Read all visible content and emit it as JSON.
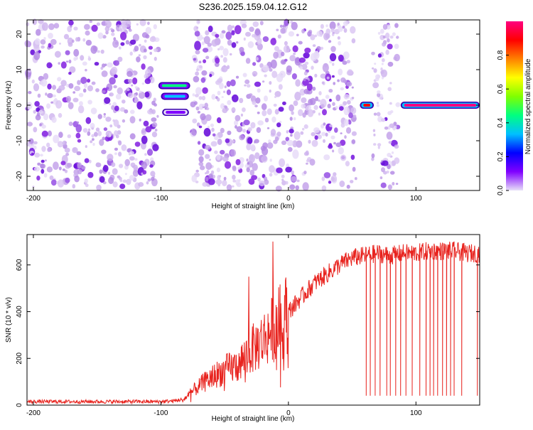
{
  "title": "S236.2025.159.04.12.G12",
  "colors": {
    "scatter_purple": "#8a2be2",
    "scatter_light": "#d6b8f0",
    "line_red": "#e8231e",
    "axis": "#000000"
  },
  "chart_data": [
    {
      "type": "heatmap",
      "xlabel": "Height of straight line (km)",
      "ylabel": "Frequency (Hz)",
      "xlim": [
        -205,
        150
      ],
      "ylim": [
        -24,
        24
      ],
      "xticks": [
        -200,
        -100,
        0,
        100
      ],
      "yticks": [
        -20,
        -10,
        0,
        10,
        20
      ],
      "grid": false,
      "colorbar": {
        "label": "Normalized spectral amplitude",
        "range": [
          0,
          1
        ],
        "ticks": [
          "0.0",
          "0.2",
          "0.4",
          "0.6",
          "0.8"
        ],
        "colormap": [
          "#e8e0f8",
          "#8000ff",
          "#0000ff",
          "#00c0ff",
          "#00ff80",
          "#80ff00",
          "#ffff00",
          "#ff8000",
          "#ff0000",
          "#ff0080"
        ]
      },
      "noise_bands": [
        {
          "x": [
            -205,
            -102
          ],
          "y": [
            -24,
            24
          ]
        },
        {
          "x": [
            -75,
            53
          ],
          "y": [
            -24,
            24
          ]
        },
        {
          "x": [
            66,
            86
          ],
          "y": [
            -24,
            24
          ]
        }
      ],
      "features": [
        {
          "x": [
            -102,
            -77
          ],
          "y": 5.5,
          "peak": 0.4
        },
        {
          "x": [
            -100,
            -78
          ],
          "y": 2.5,
          "peak": 0.3
        },
        {
          "x": [
            -99,
            -78
          ],
          "y": -2.0,
          "peak": 0.1
        },
        {
          "x": [
            56,
            67
          ],
          "y": 0.0,
          "peak": 0.9
        },
        {
          "x": [
            88,
            150
          ],
          "y": 0.0,
          "peak": 0.95
        }
      ]
    },
    {
      "type": "line",
      "xlabel": "Height of straight line (km)",
      "ylabel": "SNR (10 * v/v)",
      "xlim": [
        -205,
        150
      ],
      "ylim": [
        0,
        730
      ],
      "xticks": [
        -200,
        -100,
        0,
        100
      ],
      "yticks": [
        0,
        200,
        400,
        600
      ],
      "grid": false,
      "series": [
        {
          "x": [
            -205,
            -100,
            -90,
            -82,
            -75,
            -68,
            -60,
            -50,
            -40,
            -30,
            -20,
            -10,
            0,
            10,
            20,
            30,
            40,
            50,
            60,
            70,
            80,
            90,
            100,
            110,
            120,
            130,
            140,
            150
          ],
          "values": [
            15,
            15,
            18,
            25,
            60,
            90,
            120,
            150,
            170,
            230,
            280,
            340,
            400,
            460,
            520,
            560,
            600,
            630,
            640,
            650,
            640,
            650,
            650,
            660,
            660,
            660,
            650,
            650
          ],
          "dropouts": [
            61,
            64,
            68,
            72,
            77,
            80,
            84,
            88,
            92,
            97,
            103,
            108,
            111,
            114,
            117,
            121,
            124,
            127,
            130,
            136,
            148
          ],
          "dropout_level": 40,
          "spikes": [
            {
              "x": -12,
              "value": 700
            },
            {
              "x": -31,
              "value": 550
            }
          ]
        }
      ]
    }
  ]
}
